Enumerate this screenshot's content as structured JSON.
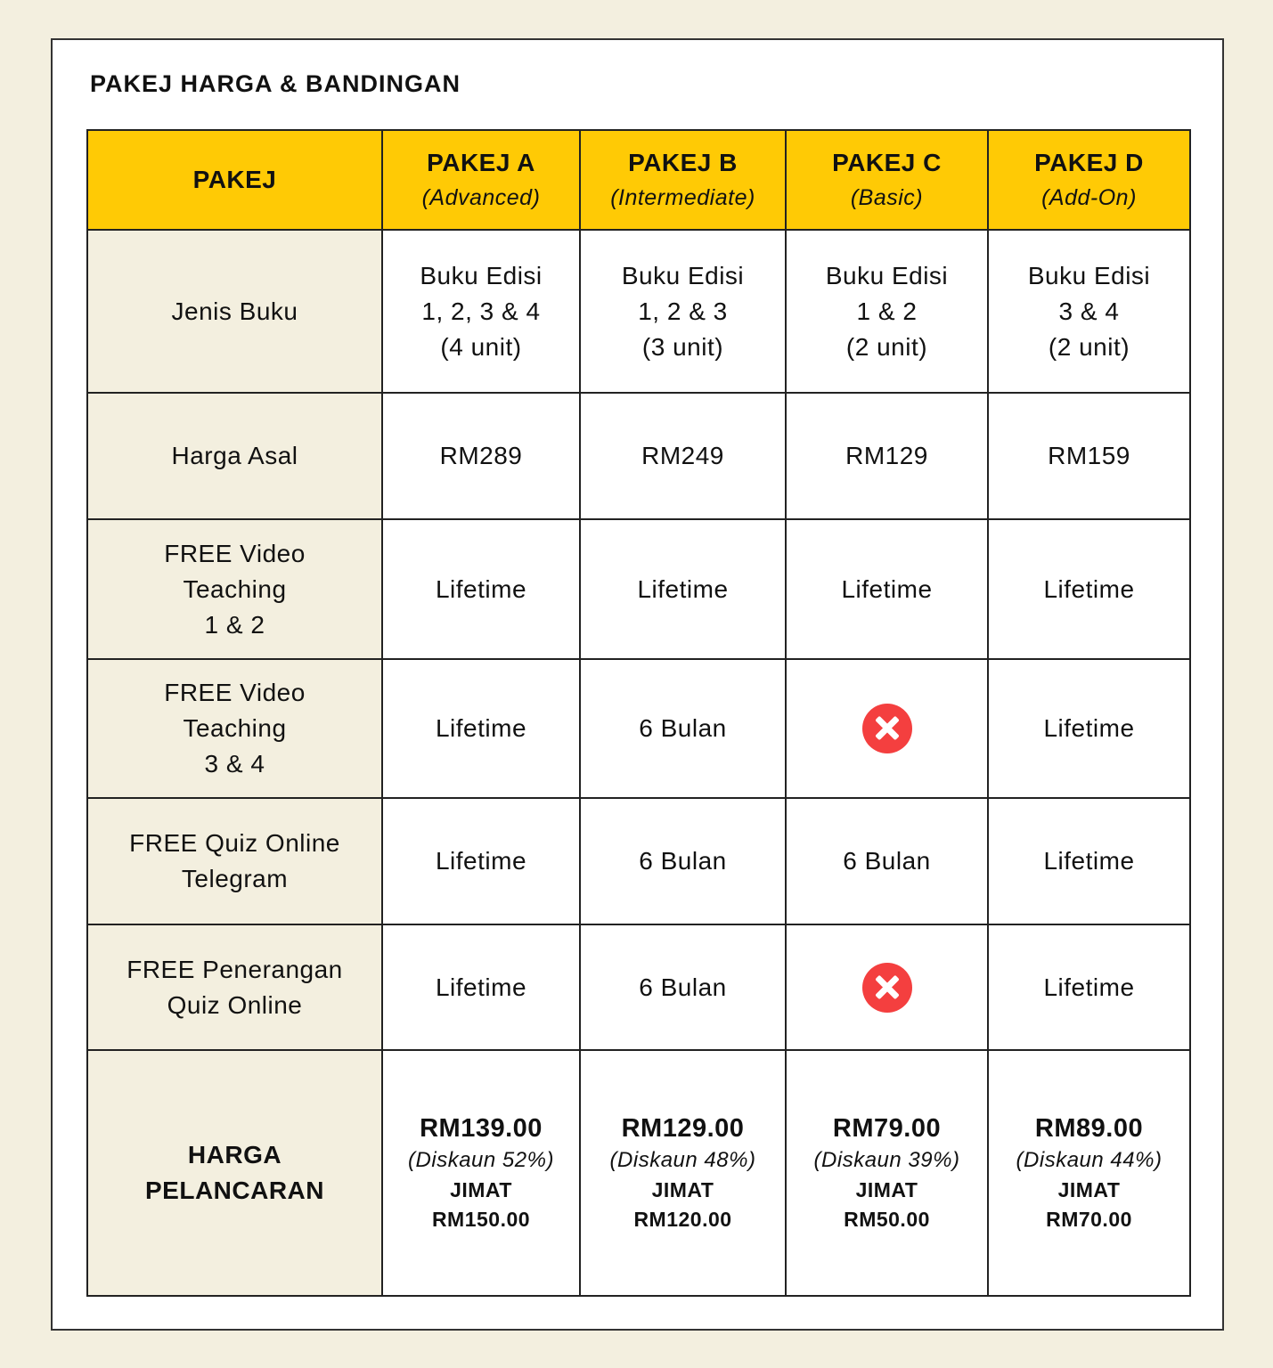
{
  "title": "PAKEJ HARGA & BANDINGAN",
  "colors": {
    "header": "#ffca05",
    "label_bg": "#f3efdf",
    "x_icon": "#f43f3f"
  },
  "header": {
    "first": "PAKEJ",
    "packages": [
      {
        "name": "PAKEJ A",
        "level": "(Advanced)"
      },
      {
        "name": "PAKEJ B",
        "level": "(Intermediate)"
      },
      {
        "name": "PAKEJ C",
        "level": "(Basic)"
      },
      {
        "name": "PAKEJ D",
        "level": "(Add-On)"
      }
    ]
  },
  "rows": [
    {
      "label": [
        "Jenis Buku"
      ],
      "values": [
        [
          "Buku Edisi",
          "1, 2, 3 & 4",
          "(4 unit)"
        ],
        [
          "Buku Edisi",
          "1, 2 & 3",
          "(3 unit)"
        ],
        [
          "Buku Edisi",
          "1 & 2",
          "(2 unit)"
        ],
        [
          "Buku Edisi",
          "3 & 4",
          "(2 unit)"
        ]
      ]
    },
    {
      "label": [
        "Harga Asal"
      ],
      "values": [
        [
          "RM289"
        ],
        [
          "RM249"
        ],
        [
          "RM129"
        ],
        [
          "RM159"
        ]
      ]
    },
    {
      "label": [
        "FREE Video",
        "Teaching",
        "1 & 2"
      ],
      "values": [
        [
          "Lifetime"
        ],
        [
          "Lifetime"
        ],
        [
          "Lifetime"
        ],
        [
          "Lifetime"
        ]
      ]
    },
    {
      "label": [
        "FREE Video",
        "Teaching",
        "3 & 4"
      ],
      "values": [
        [
          "Lifetime"
        ],
        [
          "6 Bulan"
        ],
        "x-icon",
        [
          "Lifetime"
        ]
      ]
    },
    {
      "label": [
        "FREE Quiz Online",
        "Telegram"
      ],
      "values": [
        [
          "Lifetime"
        ],
        [
          "6 Bulan"
        ],
        [
          "6 Bulan"
        ],
        [
          "Lifetime"
        ]
      ]
    },
    {
      "label": [
        "FREE Penerangan",
        "Quiz Online"
      ],
      "values": [
        [
          "Lifetime"
        ],
        [
          "6 Bulan"
        ],
        "x-icon",
        [
          "Lifetime"
        ]
      ]
    }
  ],
  "launch": {
    "label": [
      "HARGA",
      "PELANCARAN"
    ],
    "prices": [
      {
        "price": "RM139.00",
        "discount": "(Diskaun 52%)",
        "save_label": "JIMAT",
        "save": "RM150.00"
      },
      {
        "price": "RM129.00",
        "discount": "(Diskaun 48%)",
        "save_label": "JIMAT",
        "save": "RM120.00"
      },
      {
        "price": "RM79.00",
        "discount": "(Diskaun 39%)",
        "save_label": "JIMAT",
        "save": "RM50.00"
      },
      {
        "price": "RM89.00",
        "discount": "(Diskaun 44%)",
        "save_label": "JIMAT",
        "save": "RM70.00"
      }
    ]
  }
}
